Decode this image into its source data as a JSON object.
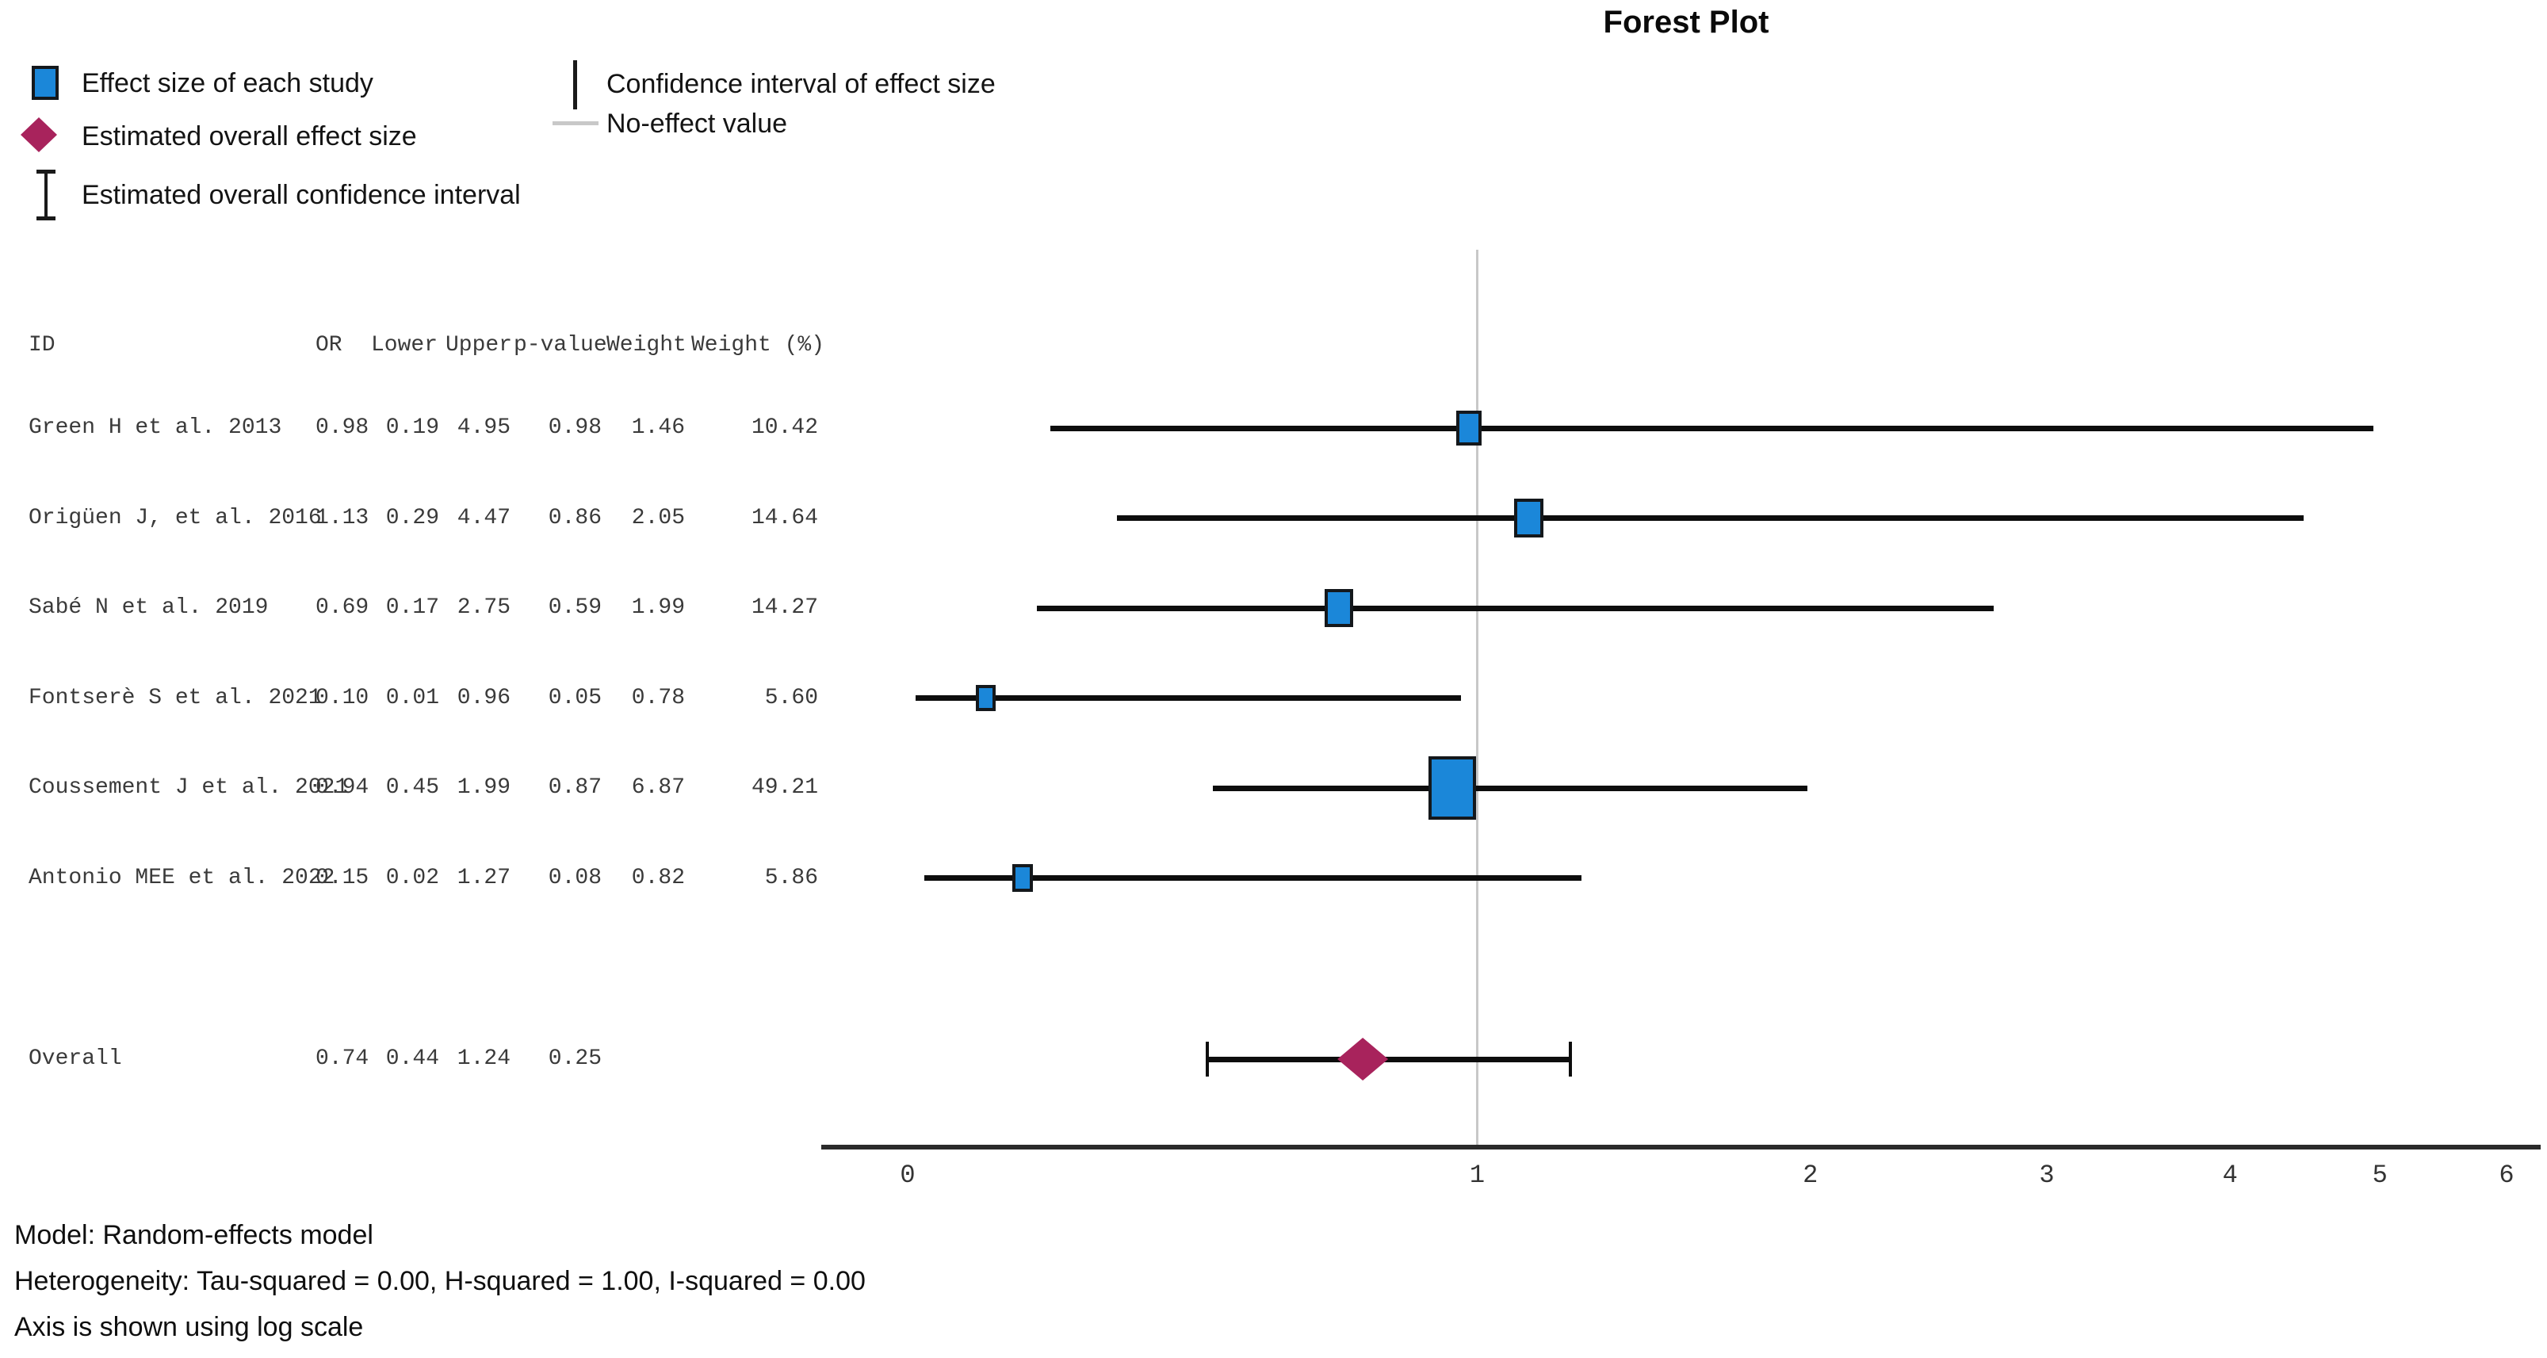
{
  "title": "Forest Plot",
  "legend": {
    "left_items": [
      {
        "icon": "effect-size-square-icon",
        "label": "Effect size of each study"
      },
      {
        "icon": "overall-effect-diamond-icon",
        "label": "Estimated overall effect size"
      },
      {
        "icon": "overall-ci-ibeam-icon",
        "label": "Estimated overall confidence interval"
      }
    ],
    "right_items": [
      {
        "icon": "ci-line-icon",
        "label": "Confidence interval of effect size"
      },
      {
        "icon": "no-effect-line-icon",
        "label": "No-effect value"
      }
    ]
  },
  "table": {
    "columns": [
      "ID",
      "OR",
      "Lower",
      "Upper",
      "p-value",
      "Weight",
      "Weight (%)"
    ]
  },
  "chart_data": {
    "type": "forest",
    "title": "Forest Plot",
    "x_axis": {
      "ticks": [
        0,
        1,
        2,
        3,
        4,
        5,
        6
      ],
      "range": [
        0,
        6
      ],
      "scale": "log",
      "no_effect_value": 1
    },
    "studies": [
      {
        "id": "Green H et al. 2013",
        "or": "0.98",
        "lower": "0.19",
        "upper": "4.95",
        "p_value": "0.98",
        "weight": "1.46",
        "weight_pct": "10.42"
      },
      {
        "id": "Origüen J, et al. 2016",
        "or": "1.13",
        "lower": "0.29",
        "upper": "4.47",
        "p_value": "0.86",
        "weight": "2.05",
        "weight_pct": "14.64"
      },
      {
        "id": "Sabé N et al. 2019",
        "or": "0.69",
        "lower": "0.17",
        "upper": "2.75",
        "p_value": "0.59",
        "weight": "1.99",
        "weight_pct": "14.27"
      },
      {
        "id": "Fontserè S et al. 2021",
        "or": "0.10",
        "lower": "0.01",
        "upper": "0.96",
        "p_value": "0.05",
        "weight": "0.78",
        "weight_pct": "5.60"
      },
      {
        "id": "Coussement J et al. 2021",
        "or": "0.94",
        "lower": "0.45",
        "upper": "1.99",
        "p_value": "0.87",
        "weight": "6.87",
        "weight_pct": "49.21"
      },
      {
        "id": "Antonio MEE et al. 2022",
        "or": "0.15",
        "lower": "0.02",
        "upper": "1.27",
        "p_value": "0.08",
        "weight": "0.82",
        "weight_pct": "5.86"
      }
    ],
    "overall": {
      "id": "Overall",
      "or": "0.74",
      "lower": "0.44",
      "upper": "1.24",
      "p_value": "0.25"
    }
  },
  "footer": {
    "model": "Model: Random-effects model",
    "heterogeneity": "Heterogeneity: Tau-squared = 0.00, H-squared = 1.00, I-squared = 0.00",
    "axis_note": "Axis is shown using log scale"
  },
  "colors": {
    "effect_square_fill": "#1b87d9",
    "overall_diamond": "#a8235c",
    "ci_line": "#0d0d0d",
    "no_effect_line": "#c8c8c8",
    "axis_line": "#2a2a2a"
  }
}
